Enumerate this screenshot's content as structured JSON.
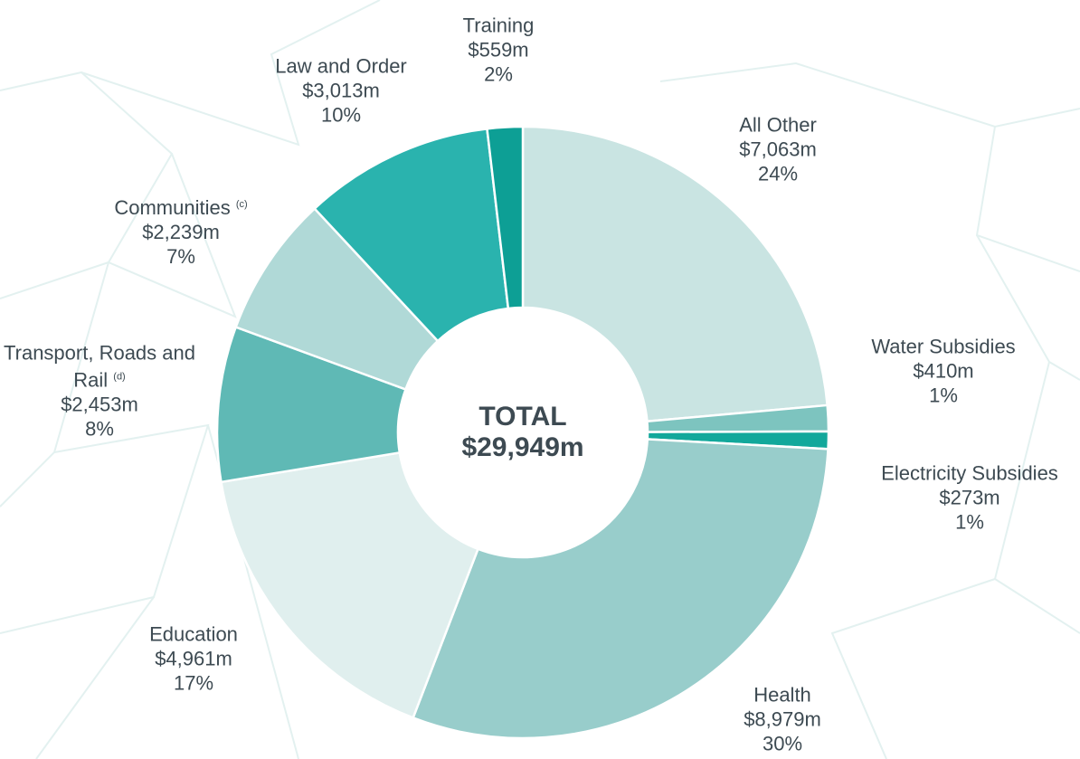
{
  "chart_data": {
    "type": "donut",
    "categories": [
      "All Other",
      "Water Subsidies",
      "Electricity Subsidies",
      "Health",
      "Education",
      "Transport, Roads and Rail",
      "Communities",
      "Law and Order",
      "Training"
    ],
    "label_notes": [
      null,
      null,
      null,
      null,
      null,
      "(d)",
      "(c)",
      null,
      null
    ],
    "values": [
      7063,
      410,
      273,
      8979,
      4961,
      2453,
      2239,
      3013,
      559
    ],
    "value_labels": [
      "$7,063m",
      "$410m",
      "$273m",
      "$8,979m",
      "$4,961m",
      "$2,453m",
      "$2,239m",
      "$3,013m",
      "$559m"
    ],
    "percents": [
      24,
      1,
      1,
      30,
      17,
      8,
      7,
      10,
      2
    ],
    "percent_labels": [
      "24%",
      "1%",
      "1%",
      "30%",
      "17%",
      "8%",
      "7%",
      "10%",
      "2%"
    ],
    "colors": [
      "#c9e4e2",
      "#7dc4bf",
      "#12a89b",
      "#98cdcb",
      "#e0efee",
      "#5fb9b5",
      "#b0d9d7",
      "#2ab3ae",
      "#0d9f95"
    ],
    "center_title": "TOTAL",
    "center_value": "$29,949m"
  }
}
